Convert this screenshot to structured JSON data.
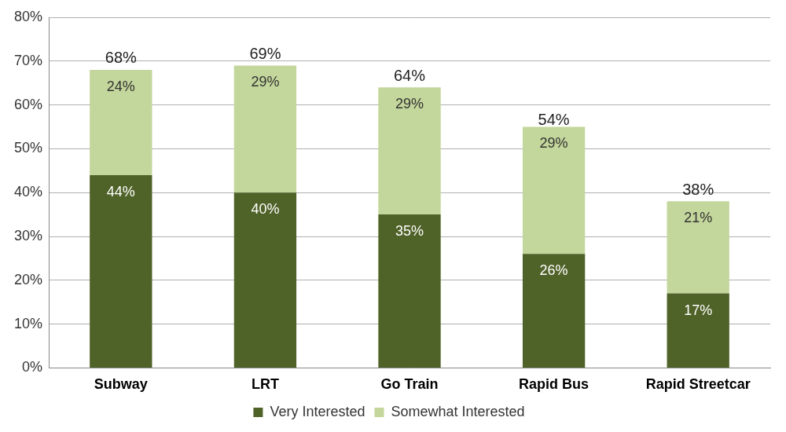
{
  "chart_data": {
    "type": "bar",
    "stacked": true,
    "categories": [
      "Subway",
      "LRT",
      "Go Train",
      "Rapid Bus",
      "Rapid Streetcar"
    ],
    "series": [
      {
        "name": "Very Interested",
        "color": "#4f6228",
        "values": [
          44,
          40,
          35,
          26,
          17
        ],
        "value_labels": [
          "44%",
          "40%",
          "35%",
          "26%",
          "17%"
        ]
      },
      {
        "name": "Somewhat Interested",
        "color": "#c3d69b",
        "values": [
          24,
          29,
          29,
          29,
          21
        ],
        "value_labels": [
          "24%",
          "29%",
          "29%",
          "29%",
          "21%"
        ]
      }
    ],
    "totals": [
      68,
      69,
      64,
      54,
      38
    ],
    "total_labels": [
      "68%",
      "69%",
      "64%",
      "54%",
      "38%"
    ],
    "ylim": [
      0,
      80
    ],
    "yticks": [
      {
        "value": 0,
        "label": "0%"
      },
      {
        "value": 10,
        "label": "10%"
      },
      {
        "value": 20,
        "label": "20%"
      },
      {
        "value": 30,
        "label": "30%"
      },
      {
        "value": 40,
        "label": "40%"
      },
      {
        "value": 50,
        "label": "50%"
      },
      {
        "value": 60,
        "label": "60%"
      },
      {
        "value": 70,
        "label": "70%"
      },
      {
        "value": 80,
        "label": "80%"
      }
    ],
    "grid": true,
    "legend": "bottom",
    "data_labels": true
  }
}
